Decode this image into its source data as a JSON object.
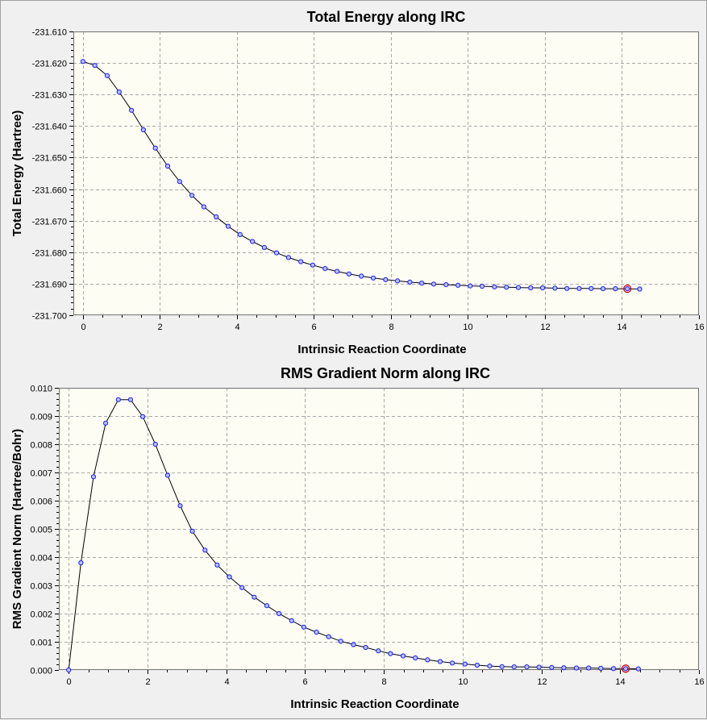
{
  "colors": {
    "plot_background": "#fdfdf3",
    "grid": "#a8a8a8",
    "line": "#000000",
    "marker": "#1a1aff",
    "highlight": "#e00000"
  },
  "chart_data": [
    {
      "type": "line",
      "title": "Total Energy along IRC",
      "xlabel": "Intrinsic Reaction Coordinate",
      "ylabel": "Total Energy (Hartree)",
      "xlim": [
        -0.25,
        16
      ],
      "ylim": [
        -231.7,
        -231.61
      ],
      "xticks": [
        "0",
        "2",
        "4",
        "6",
        "8",
        "10",
        "12",
        "14",
        "16"
      ],
      "yticks": [
        "-231.610",
        "-231.620",
        "-231.630",
        "-231.640",
        "-231.650",
        "-231.660",
        "-231.670",
        "-231.680",
        "-231.690",
        "-231.700"
      ],
      "grid": true,
      "highlight_x": 14.14,
      "series": [
        {
          "x": [
            0,
            0.31,
            0.63,
            0.94,
            1.26,
            1.57,
            1.88,
            2.2,
            2.51,
            2.83,
            3.14,
            3.46,
            3.77,
            4.08,
            4.4,
            4.71,
            5.03,
            5.34,
            5.66,
            5.97,
            6.29,
            6.6,
            6.91,
            7.23,
            7.54,
            7.86,
            8.17,
            8.49,
            8.8,
            9.11,
            9.43,
            9.74,
            10.06,
            10.37,
            10.69,
            11.0,
            11.31,
            11.63,
            11.94,
            12.26,
            12.57,
            12.89,
            13.2,
            13.51,
            13.83,
            14.14,
            14.46
          ],
          "values": [
            -231.6195,
            -231.6208,
            -231.624,
            -231.6292,
            -231.635,
            -231.6412,
            -231.647,
            -231.6527,
            -231.6576,
            -231.662,
            -231.6656,
            -231.6688,
            -231.6718,
            -231.6744,
            -231.6766,
            -231.6785,
            -231.6802,
            -231.6817,
            -231.683,
            -231.6841,
            -231.6852,
            -231.6861,
            -231.6869,
            -231.6876,
            -231.6882,
            -231.6887,
            -231.6891,
            -231.6895,
            -231.6898,
            -231.6901,
            -231.6903,
            -231.6905,
            -231.6907,
            -231.6908,
            -231.691,
            -231.6911,
            -231.6912,
            -231.6913,
            -231.6913,
            -231.6914,
            -231.6915,
            -231.6915,
            -231.6915,
            -231.6916,
            -231.6916,
            -231.6916,
            -231.6917
          ]
        }
      ]
    },
    {
      "type": "line",
      "title": "RMS Gradient Norm along IRC",
      "xlabel": "Intrinsic Reaction Coordinate",
      "ylabel": "RMS Gradient Norm (Hartree/Bohr)",
      "xlim": [
        -0.25,
        16
      ],
      "ylim": [
        0.0,
        0.01
      ],
      "xticks": [
        "0",
        "2",
        "4",
        "6",
        "8",
        "10",
        "12",
        "14",
        "16"
      ],
      "yticks": [
        "0.000",
        "0.001",
        "0.002",
        "0.003",
        "0.004",
        "0.005",
        "0.006",
        "0.007",
        "0.008",
        "0.009",
        "0.010"
      ],
      "grid": true,
      "highlight_x": 14.14,
      "series": [
        {
          "x": [
            0,
            0.31,
            0.63,
            0.94,
            1.26,
            1.57,
            1.88,
            2.2,
            2.51,
            2.83,
            3.14,
            3.46,
            3.77,
            4.08,
            4.4,
            4.71,
            5.03,
            5.34,
            5.66,
            5.97,
            6.29,
            6.6,
            6.91,
            7.23,
            7.54,
            7.86,
            8.17,
            8.49,
            8.8,
            9.11,
            9.43,
            9.74,
            10.06,
            10.37,
            10.69,
            11.0,
            11.31,
            11.63,
            11.94,
            12.26,
            12.57,
            12.89,
            13.2,
            13.51,
            13.83,
            14.14,
            14.46
          ],
          "values": [
            0.0,
            0.0038,
            0.00685,
            0.00875,
            0.00958,
            0.00958,
            0.00898,
            0.008,
            0.0069,
            0.00582,
            0.00492,
            0.00425,
            0.00372,
            0.0033,
            0.00292,
            0.00258,
            0.00228,
            0.002,
            0.00175,
            0.00152,
            0.00134,
            0.00118,
            0.00102,
            0.0009,
            0.0008,
            0.00068,
            0.00058,
            0.0005,
            0.00043,
            0.00036,
            0.0003,
            0.00025,
            0.00021,
            0.00017,
            0.00014,
            0.00012,
            0.00011,
            0.00011,
            0.0001,
            9e-05,
            8e-05,
            7e-05,
            7e-05,
            6e-05,
            5e-05,
            5e-05,
            4e-05
          ]
        }
      ]
    }
  ]
}
